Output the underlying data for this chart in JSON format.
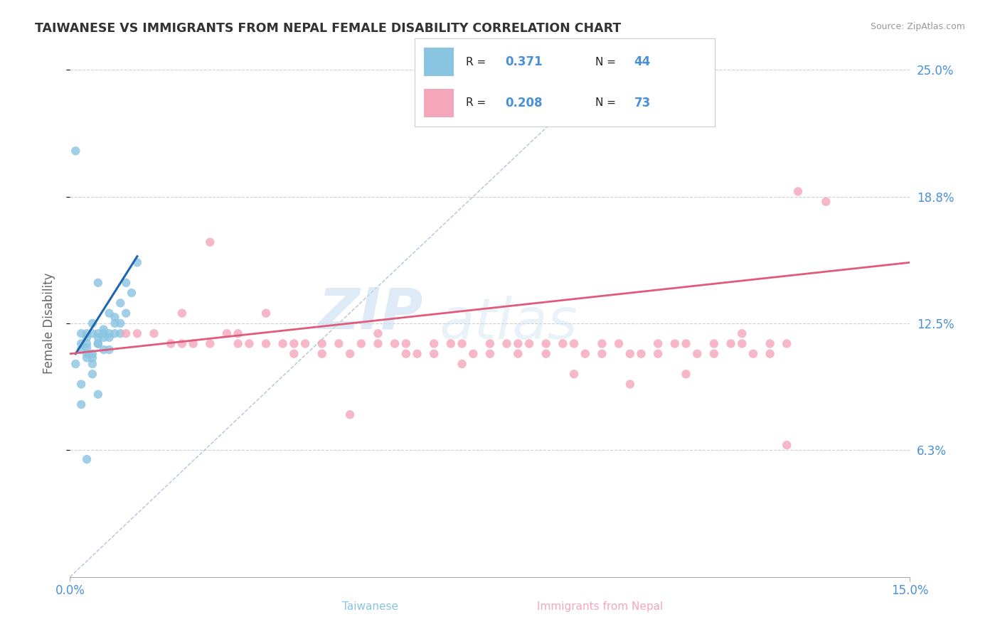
{
  "title": "TAIWANESE VS IMMIGRANTS FROM NEPAL FEMALE DISABILITY CORRELATION CHART",
  "source_text": "Source: ZipAtlas.com",
  "ylabel": "Female Disability",
  "watermark_zip": "ZIP",
  "watermark_atlas": "atlas",
  "r_values": [
    "0.371",
    "0.208"
  ],
  "n_values": [
    "44",
    "73"
  ],
  "series_colors": [
    "#89c4e1",
    "#f4a7bb"
  ],
  "trend_color_tw": "#2166ac",
  "trend_color_np": "#e05a7a",
  "ref_line_color": "#b0c4de",
  "xlim": [
    0.0,
    0.15
  ],
  "ylim": [
    0.0,
    0.25
  ],
  "ytick_positions": [
    0.0625,
    0.125,
    0.1875,
    0.25
  ],
  "ytick_labels": [
    "6.3%",
    "12.5%",
    "18.8%",
    "25.0%"
  ],
  "background_color": "#ffffff",
  "grid_color": "#d0d0d0",
  "title_color": "#333333",
  "axis_label_color": "#666666",
  "tick_label_color": "#4a90d9",
  "legend_border_color": "#cccccc",
  "tw_x": [
    0.001,
    0.002,
    0.002,
    0.002,
    0.002,
    0.003,
    0.003,
    0.003,
    0.003,
    0.003,
    0.003,
    0.004,
    0.004,
    0.004,
    0.004,
    0.004,
    0.005,
    0.005,
    0.005,
    0.005,
    0.005,
    0.006,
    0.006,
    0.006,
    0.006,
    0.007,
    0.007,
    0.007,
    0.007,
    0.008,
    0.008,
    0.008,
    0.009,
    0.009,
    0.009,
    0.01,
    0.01,
    0.011,
    0.012,
    0.002,
    0.003,
    0.004,
    0.005,
    0.001
  ],
  "tw_y": [
    0.105,
    0.095,
    0.112,
    0.115,
    0.12,
    0.108,
    0.11,
    0.115,
    0.118,
    0.12,
    0.113,
    0.1,
    0.105,
    0.11,
    0.12,
    0.125,
    0.09,
    0.115,
    0.118,
    0.12,
    0.115,
    0.112,
    0.118,
    0.12,
    0.122,
    0.112,
    0.118,
    0.12,
    0.13,
    0.12,
    0.125,
    0.128,
    0.12,
    0.125,
    0.135,
    0.13,
    0.145,
    0.14,
    0.155,
    0.085,
    0.058,
    0.108,
    0.145,
    0.21
  ],
  "np_x": [
    0.01,
    0.012,
    0.015,
    0.018,
    0.02,
    0.02,
    0.022,
    0.025,
    0.025,
    0.028,
    0.03,
    0.03,
    0.032,
    0.035,
    0.035,
    0.038,
    0.04,
    0.04,
    0.042,
    0.045,
    0.045,
    0.048,
    0.05,
    0.05,
    0.052,
    0.055,
    0.055,
    0.058,
    0.06,
    0.06,
    0.062,
    0.065,
    0.065,
    0.068,
    0.07,
    0.07,
    0.072,
    0.075,
    0.075,
    0.078,
    0.08,
    0.08,
    0.082,
    0.085,
    0.085,
    0.088,
    0.09,
    0.09,
    0.092,
    0.095,
    0.095,
    0.098,
    0.1,
    0.1,
    0.102,
    0.105,
    0.105,
    0.108,
    0.11,
    0.11,
    0.112,
    0.115,
    0.115,
    0.118,
    0.12,
    0.12,
    0.122,
    0.125,
    0.125,
    0.128,
    0.13,
    0.135,
    0.128
  ],
  "np_y": [
    0.12,
    0.12,
    0.12,
    0.115,
    0.115,
    0.13,
    0.115,
    0.115,
    0.165,
    0.12,
    0.115,
    0.12,
    0.115,
    0.115,
    0.13,
    0.115,
    0.11,
    0.115,
    0.115,
    0.11,
    0.115,
    0.115,
    0.08,
    0.11,
    0.115,
    0.115,
    0.12,
    0.115,
    0.11,
    0.115,
    0.11,
    0.11,
    0.115,
    0.115,
    0.105,
    0.115,
    0.11,
    0.11,
    0.115,
    0.115,
    0.11,
    0.115,
    0.115,
    0.11,
    0.115,
    0.115,
    0.1,
    0.115,
    0.11,
    0.11,
    0.115,
    0.115,
    0.095,
    0.11,
    0.11,
    0.11,
    0.115,
    0.115,
    0.1,
    0.115,
    0.11,
    0.11,
    0.115,
    0.115,
    0.115,
    0.12,
    0.11,
    0.11,
    0.115,
    0.115,
    0.19,
    0.185,
    0.065
  ]
}
